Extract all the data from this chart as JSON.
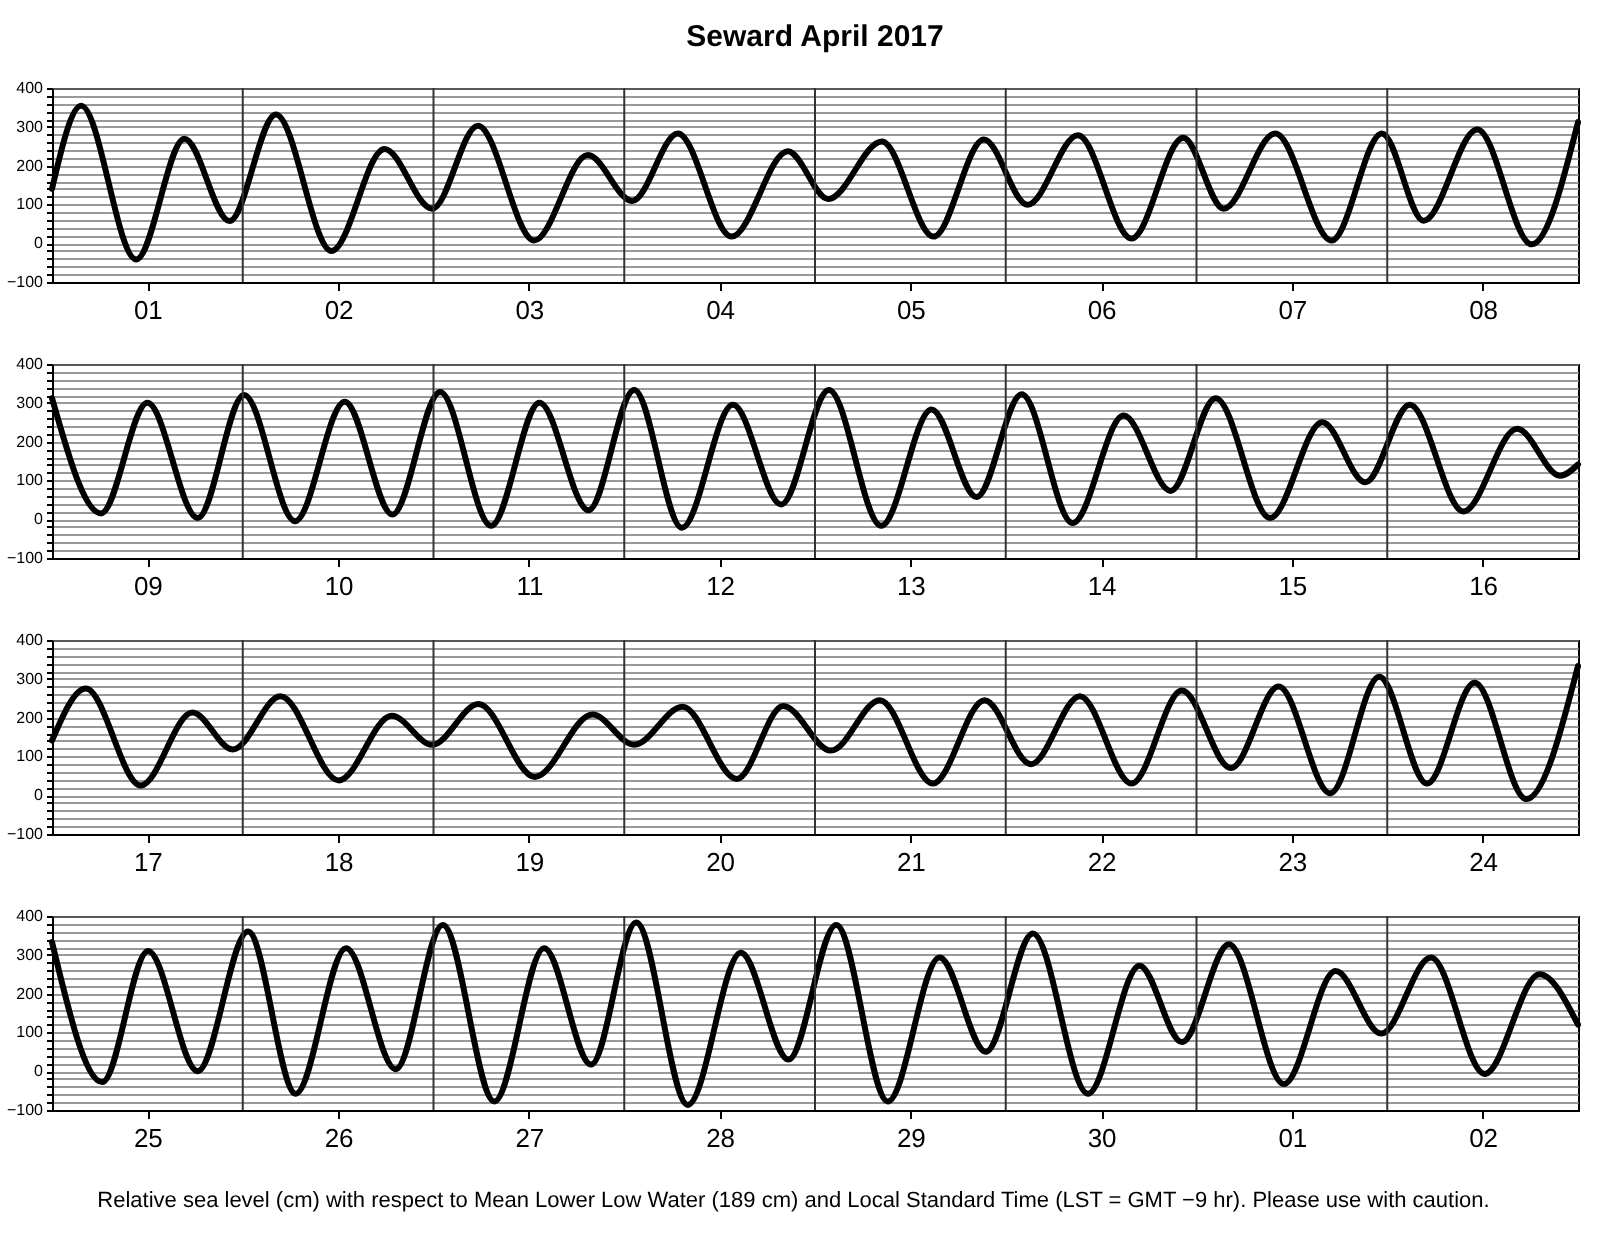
{
  "chart_data": [
    {
      "type": "line",
      "title": "Seward April 2017",
      "xlim": [
        "2017-04-01T00:00",
        "2017-04-09T00:00"
      ],
      "xticks": [
        {
          "value": "2017-04-01T12:00",
          "label": "01"
        },
        {
          "value": "2017-04-02T12:00",
          "label": "02"
        },
        {
          "value": "2017-04-03T12:00",
          "label": "03"
        },
        {
          "value": "2017-04-04T12:00",
          "label": "04"
        },
        {
          "value": "2017-04-05T12:00",
          "label": "05"
        },
        {
          "value": "2017-04-06T12:00",
          "label": "06"
        },
        {
          "value": "2017-04-07T12:00",
          "label": "07"
        },
        {
          "value": "2017-04-08T12:00",
          "label": "08"
        }
      ],
      "ylim": [
        -100,
        400
      ],
      "yticks": [
        {
          "value": -100,
          "label": "−100"
        },
        {
          "value": -80,
          "label": null
        },
        {
          "value": -60,
          "label": null
        },
        {
          "value": -40,
          "label": null
        },
        {
          "value": -20,
          "label": null
        },
        0,
        {
          "value": 20,
          "label": null
        },
        {
          "value": 40,
          "label": null
        },
        {
          "value": 60,
          "label": null
        },
        {
          "value": 80,
          "label": null
        },
        100,
        {
          "value": 120,
          "label": null
        },
        {
          "value": 140,
          "label": null
        },
        {
          "value": 160,
          "label": null
        },
        {
          "value": 180,
          "label": null
        },
        200,
        {
          "value": 220,
          "label": null
        },
        {
          "value": 240,
          "label": null
        },
        {
          "value": 260,
          "label": null
        },
        {
          "value": 280,
          "label": null
        },
        300,
        {
          "value": 320,
          "label": null
        },
        {
          "value": 340,
          "label": null
        },
        {
          "value": 360,
          "label": null
        },
        {
          "value": 380,
          "label": null
        },
        400
      ],
      "grid": "y",
      "ref_lines": [
        {
          "axis": "x",
          "value": "2017-04-02T00:00"
        },
        {
          "axis": "x",
          "value": "2017-04-03T00:00"
        },
        {
          "axis": "x",
          "value": "2017-04-04T00:00"
        },
        {
          "axis": "x",
          "value": "2017-04-05T00:00"
        },
        {
          "axis": "x",
          "value": "2017-04-06T00:00"
        },
        {
          "axis": "x",
          "value": "2017-04-07T00:00"
        },
        {
          "axis": "x",
          "value": "2017-04-08T00:00"
        }
      ],
      "series": [
        {
          "color": "#000000",
          "x": [
            "2017-04-01T00:00",
            "2017-04-01T03:40",
            "2017-04-01T10:35",
            "2017-04-01T16:40",
            "2017-04-01T22:20",
            "2017-04-02T04:10",
            "2017-04-02T11:10",
            "2017-04-02T17:50",
            "2017-04-02T23:50",
            "2017-04-03T05:35",
            "2017-04-03T12:40",
            "2017-04-03T19:25",
            "2017-04-04T01:00",
            "2017-04-04T06:45",
            "2017-04-04T13:30",
            "2017-04-04T20:35",
            "2017-04-05T01:40",
            "2017-04-05T08:25",
            "2017-04-05T14:55",
            "2017-04-05T21:15",
            "2017-04-06T02:45",
            "2017-04-06T09:05",
            "2017-04-06T15:50",
            "2017-04-06T22:20",
            "2017-04-07T03:25",
            "2017-04-07T09:55",
            "2017-04-07T17:00",
            "2017-04-07T23:20",
            "2017-04-08T04:35",
            "2017-04-08T11:20",
            "2017-04-08T18:10",
            "2017-04-09T00:00"
          ],
          "values": [
            140,
            354,
            -42,
            269,
            57,
            332,
            -20,
            243,
            89,
            303,
            7,
            227,
            109,
            283,
            17,
            237,
            114,
            262,
            17,
            267,
            99,
            278,
            12,
            272,
            89,
            283,
            7,
            283,
            58,
            293,
            -3,
            312
          ]
        }
      ]
    },
    {
      "type": "line",
      "xlim": [
        "2017-04-09T00:00",
        "2017-04-17T00:00"
      ],
      "xticks": [
        {
          "value": "2017-04-09T12:00",
          "label": "09"
        },
        {
          "value": "2017-04-10T12:00",
          "label": "10"
        },
        {
          "value": "2017-04-11T12:00",
          "label": "11"
        },
        {
          "value": "2017-04-12T12:00",
          "label": "12"
        },
        {
          "value": "2017-04-13T12:00",
          "label": "13"
        },
        {
          "value": "2017-04-14T12:00",
          "label": "14"
        },
        {
          "value": "2017-04-15T12:00",
          "label": "15"
        },
        {
          "value": "2017-04-16T12:00",
          "label": "16"
        }
      ],
      "ylim": [
        -100,
        400
      ],
      "yticks": [
        {
          "value": -100,
          "label": "−100"
        },
        {
          "value": -80,
          "label": null
        },
        {
          "value": -60,
          "label": null
        },
        {
          "value": -40,
          "label": null
        },
        {
          "value": -20,
          "label": null
        },
        0,
        {
          "value": 20,
          "label": null
        },
        {
          "value": 40,
          "label": null
        },
        {
          "value": 60,
          "label": null
        },
        {
          "value": 80,
          "label": null
        },
        100,
        {
          "value": 120,
          "label": null
        },
        {
          "value": 140,
          "label": null
        },
        {
          "value": 160,
          "label": null
        },
        {
          "value": 180,
          "label": null
        },
        200,
        {
          "value": 220,
          "label": null
        },
        {
          "value": 240,
          "label": null
        },
        {
          "value": 260,
          "label": null
        },
        {
          "value": 280,
          "label": null
        },
        300,
        {
          "value": 320,
          "label": null
        },
        {
          "value": 340,
          "label": null
        },
        {
          "value": 360,
          "label": null
        },
        {
          "value": 380,
          "label": null
        },
        400
      ],
      "grid": "y",
      "ref_lines": [
        {
          "axis": "x",
          "value": "2017-04-10T00:00"
        },
        {
          "axis": "x",
          "value": "2017-04-11T00:00"
        },
        {
          "axis": "x",
          "value": "2017-04-12T00:00"
        },
        {
          "axis": "x",
          "value": "2017-04-13T00:00"
        },
        {
          "axis": "x",
          "value": "2017-04-14T00:00"
        },
        {
          "axis": "x",
          "value": "2017-04-15T00:00"
        },
        {
          "axis": "x",
          "value": "2017-04-16T00:00"
        }
      ],
      "series": [
        {
          "color": "#000000",
          "x": [
            "2017-04-09T00:00",
            "2017-04-09T06:10",
            "2017-04-09T12:00",
            "2017-04-09T18:20",
            "2017-04-10T00:10",
            "2017-04-10T06:35",
            "2017-04-10T12:50",
            "2017-04-10T18:50",
            "2017-04-11T00:50",
            "2017-04-11T07:15",
            "2017-04-11T13:20",
            "2017-04-11T19:30",
            "2017-04-12T01:15",
            "2017-04-12T07:15",
            "2017-04-12T13:40",
            "2017-04-12T19:45",
            "2017-04-13T01:45",
            "2017-04-13T08:20",
            "2017-04-13T14:40",
            "2017-04-13T20:20",
            "2017-04-14T02:00",
            "2017-04-14T08:25",
            "2017-04-14T14:50",
            "2017-04-14T20:45",
            "2017-04-15T02:25",
            "2017-04-15T09:15",
            "2017-04-15T15:50",
            "2017-04-15T21:15",
            "2017-04-16T02:50",
            "2017-04-16T09:35",
            "2017-04-16T16:20",
            "2017-04-16T21:45",
            "2017-04-17T00:00"
          ],
          "values": [
            312,
            15,
            300,
            3,
            320,
            -5,
            303,
            12,
            328,
            -17,
            300,
            23,
            333,
            -22,
            295,
            38,
            333,
            -17,
            283,
            57,
            322,
            -10,
            267,
            73,
            312,
            3,
            250,
            95,
            295,
            20,
            233,
            112,
            141
          ]
        }
      ]
    },
    {
      "type": "line",
      "xlim": [
        "2017-04-17T00:00",
        "2017-04-25T00:00"
      ],
      "xticks": [
        {
          "value": "2017-04-17T12:00",
          "label": "17"
        },
        {
          "value": "2017-04-18T12:00",
          "label": "18"
        },
        {
          "value": "2017-04-19T12:00",
          "label": "19"
        },
        {
          "value": "2017-04-20T12:00",
          "label": "20"
        },
        {
          "value": "2017-04-21T12:00",
          "label": "21"
        },
        {
          "value": "2017-04-22T12:00",
          "label": "22"
        },
        {
          "value": "2017-04-23T12:00",
          "label": "23"
        },
        {
          "value": "2017-04-24T12:00",
          "label": "24"
        }
      ],
      "ylim": [
        -100,
        400
      ],
      "yticks": [
        {
          "value": -100,
          "label": "−100"
        },
        {
          "value": -80,
          "label": null
        },
        {
          "value": -60,
          "label": null
        },
        {
          "value": -40,
          "label": null
        },
        {
          "value": -20,
          "label": null
        },
        0,
        {
          "value": 20,
          "label": null
        },
        {
          "value": 40,
          "label": null
        },
        {
          "value": 60,
          "label": null
        },
        {
          "value": 80,
          "label": null
        },
        100,
        {
          "value": 120,
          "label": null
        },
        {
          "value": 140,
          "label": null
        },
        {
          "value": 160,
          "label": null
        },
        {
          "value": 180,
          "label": null
        },
        200,
        {
          "value": 220,
          "label": null
        },
        {
          "value": 240,
          "label": null
        },
        {
          "value": 260,
          "label": null
        },
        {
          "value": 280,
          "label": null
        },
        300,
        {
          "value": 320,
          "label": null
        },
        {
          "value": 340,
          "label": null
        },
        {
          "value": 360,
          "label": null
        },
        {
          "value": 380,
          "label": null
        },
        400
      ],
      "grid": "y",
      "ref_lines": [
        {
          "axis": "x",
          "value": "2017-04-18T00:00"
        },
        {
          "axis": "x",
          "value": "2017-04-19T00:00"
        },
        {
          "axis": "x",
          "value": "2017-04-20T00:00"
        },
        {
          "axis": "x",
          "value": "2017-04-21T00:00"
        },
        {
          "axis": "x",
          "value": "2017-04-22T00:00"
        },
        {
          "axis": "x",
          "value": "2017-04-23T00:00"
        },
        {
          "axis": "x",
          "value": "2017-04-24T00:00"
        }
      ],
      "series": [
        {
          "color": "#000000",
          "x": [
            "2017-04-17T00:00",
            "2017-04-17T04:15",
            "2017-04-17T11:10",
            "2017-04-17T17:40",
            "2017-04-17T22:45",
            "2017-04-18T04:45",
            "2017-04-18T12:05",
            "2017-04-18T18:45",
            "2017-04-18T23:50",
            "2017-04-19T05:40",
            "2017-04-19T12:45",
            "2017-04-19T20:00",
            "2017-04-20T01:15",
            "2017-04-20T07:20",
            "2017-04-20T14:10",
            "2017-04-20T20:00",
            "2017-04-21T02:00",
            "2017-04-21T08:10",
            "2017-04-21T14:50",
            "2017-04-21T21:20",
            "2017-04-22T03:10",
            "2017-04-22T09:20",
            "2017-04-22T15:50",
            "2017-04-22T22:10",
            "2017-04-23T04:20",
            "2017-04-23T10:20",
            "2017-04-23T16:50",
            "2017-04-23T23:00",
            "2017-04-24T05:00",
            "2017-04-24T11:00",
            "2017-04-24T17:30",
            "2017-04-25T00:00"
          ],
          "values": [
            141,
            275,
            25,
            213,
            118,
            255,
            38,
            205,
            130,
            235,
            47,
            208,
            130,
            228,
            42,
            230,
            115,
            245,
            30,
            245,
            80,
            255,
            30,
            270,
            70,
            280,
            5,
            305,
            30,
            290,
            -10,
            333
          ]
        }
      ]
    },
    {
      "type": "line",
      "xlim": [
        "2017-04-25T00:00",
        "2017-05-03T00:00"
      ],
      "xticks": [
        {
          "value": "2017-04-25T12:00",
          "label": "25"
        },
        {
          "value": "2017-04-26T12:00",
          "label": "26"
        },
        {
          "value": "2017-04-27T12:00",
          "label": "27"
        },
        {
          "value": "2017-04-28T12:00",
          "label": "28"
        },
        {
          "value": "2017-04-29T12:00",
          "label": "29"
        },
        {
          "value": "2017-04-30T12:00",
          "label": "30"
        },
        {
          "value": "2017-05-01T12:00",
          "label": "01"
        },
        {
          "value": "2017-05-02T12:00",
          "label": "02"
        }
      ],
      "ylim": [
        -100,
        400
      ],
      "yticks": [
        {
          "value": -100,
          "label": "−100"
        },
        {
          "value": -80,
          "label": null
        },
        {
          "value": -60,
          "label": null
        },
        {
          "value": -40,
          "label": null
        },
        {
          "value": -20,
          "label": null
        },
        0,
        {
          "value": 20,
          "label": null
        },
        {
          "value": 40,
          "label": null
        },
        {
          "value": 60,
          "label": null
        },
        {
          "value": 80,
          "label": null
        },
        100,
        {
          "value": 120,
          "label": null
        },
        {
          "value": 140,
          "label": null
        },
        {
          "value": 160,
          "label": null
        },
        {
          "value": 180,
          "label": null
        },
        200,
        {
          "value": 220,
          "label": null
        },
        {
          "value": 240,
          "label": null
        },
        {
          "value": 260,
          "label": null
        },
        {
          "value": 280,
          "label": null
        },
        300,
        {
          "value": 320,
          "label": null
        },
        {
          "value": 340,
          "label": null
        },
        {
          "value": 360,
          "label": null
        },
        {
          "value": 380,
          "label": null
        },
        400
      ],
      "grid": "y",
      "ref_lines": [
        {
          "axis": "x",
          "value": "2017-04-26T00:00"
        },
        {
          "axis": "x",
          "value": "2017-04-27T00:00"
        },
        {
          "axis": "x",
          "value": "2017-04-28T00:00"
        },
        {
          "axis": "x",
          "value": "2017-04-29T00:00"
        },
        {
          "axis": "x",
          "value": "2017-04-30T00:00"
        },
        {
          "axis": "x",
          "value": "2017-05-01T00:00"
        },
        {
          "axis": "x",
          "value": "2017-05-02T00:00"
        }
      ],
      "annotations": [
        "Relative sea level (cm) with respect to Mean Lower Low Water (189 cm) and Local Standard Time (LST = GMT −9 hr). Please use with caution."
      ],
      "series": [
        {
          "color": "#000000",
          "x": [
            "2017-04-25T00:00",
            "2017-04-25T06:20",
            "2017-04-25T12:05",
            "2017-04-25T18:20",
            "2017-04-26T00:40",
            "2017-04-26T06:40",
            "2017-04-26T13:00",
            "2017-04-26T19:15",
            "2017-04-27T01:10",
            "2017-04-27T07:40",
            "2017-04-27T13:55",
            "2017-04-27T19:50",
            "2017-04-28T01:30",
            "2017-04-28T08:00",
            "2017-04-28T14:40",
            "2017-04-28T20:40",
            "2017-04-29T02:40",
            "2017-04-29T09:10",
            "2017-04-29T15:40",
            "2017-04-29T21:30",
            "2017-04-30T03:25",
            "2017-04-30T10:20",
            "2017-04-30T16:50",
            "2017-04-30T22:10",
            "2017-05-01T04:05",
            "2017-05-01T11:00",
            "2017-05-01T17:30",
            "2017-05-01T23:15",
            "2017-05-02T05:30",
            "2017-05-02T12:15",
            "2017-05-02T19:10",
            "2017-05-03T00:00"
          ],
          "values": [
            333,
            -28,
            310,
            0,
            360,
            -58,
            317,
            5,
            377,
            -78,
            317,
            17,
            383,
            -87,
            305,
            30,
            377,
            -78,
            293,
            50,
            355,
            -58,
            272,
            75,
            327,
            -33,
            258,
            97,
            293,
            -7,
            250,
            120
          ]
        }
      ]
    }
  ]
}
